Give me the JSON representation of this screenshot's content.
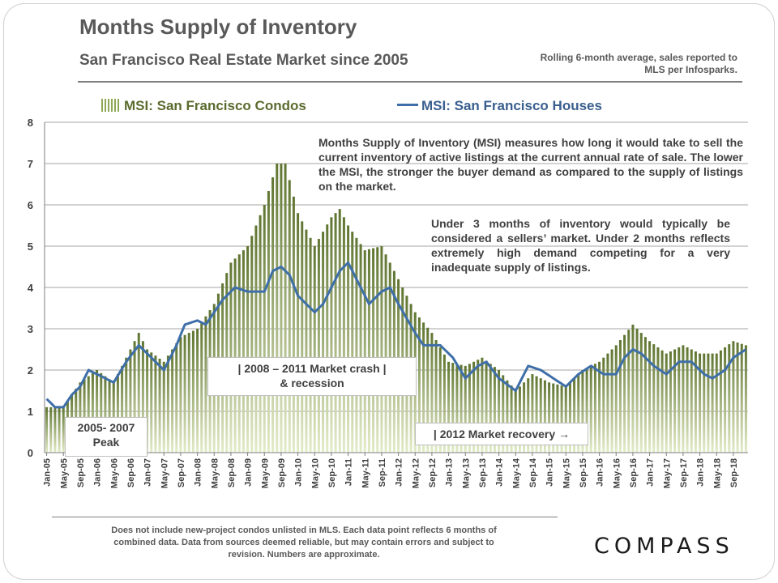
{
  "header": {
    "title": "Months Supply of Inventory",
    "subtitle": "San Francisco Real Estate Market since 2005",
    "note": "Rolling 6-month average, sales reported to MLS per Infosparks."
  },
  "annotations": {
    "msi_definition": "Months Supply of Inventory (MSI) measures how long it would take to sell the current inventory of active listings at the current annual rate of sale. The lower the MSI, the stronger the buyer demand as compared to the supply of listings on the market.",
    "sellers_market": "Under 3 months of inventory would typically be considered a sellers’ market. Under 2 months reflects extremely high demand competing for a very inadequate supply of listings.",
    "crash_line1": "|   2008 – 2011 Market crash   |",
    "crash_line2": "& recession",
    "peak_line1": "2005- 2007",
    "peak_line2": "Peak",
    "recovery": "| 2012 Market recovery →"
  },
  "footnote": "Does not include new-project condos unlisted in MLS. Each data point reflects 6 months of combined data. Data from sources  deemed reliable, but may contain errors and subject to revision. Numbers are approximate.",
  "brand": {
    "logo": "COMPASS"
  },
  "colors": {
    "condo_bars": "#8fa855",
    "condo_legend": "#5b6b2e",
    "house_line": "#3f6fa8",
    "gridline": "#a6a6a6"
  },
  "chart_data": {
    "type": "bar+line",
    "ylim": [
      0,
      8
    ],
    "y_ticks": [
      0,
      1,
      2,
      3,
      4,
      5,
      6,
      7,
      8
    ],
    "grid": "horizontal",
    "legend_position": "top",
    "x_tick_labels": [
      "Jan-05",
      "May-05",
      "Sep-05",
      "Jan-06",
      "May-06",
      "Sep-06",
      "Jan-07",
      "May-07",
      "Sep-07",
      "Jan-08",
      "May-08",
      "Sep-08",
      "Jan-09",
      "May-09",
      "Sep-09",
      "Jan-10",
      "May-10",
      "Sep-10",
      "Jan-11",
      "May-11",
      "Sep-11",
      "Jan-12",
      "May-12",
      "Sep-12",
      "Jan-13",
      "May-13",
      "Sep-13",
      "Jan-14",
      "May-14",
      "Sep-14",
      "Jan-15",
      "May-15",
      "Sep-15",
      "Jan-16",
      "May-16",
      "Sep-16",
      "Jan-17",
      "May-17",
      "Sep-17",
      "Jan-18",
      "May-18",
      "Sep-18"
    ],
    "x_start": "Jan-05",
    "x_end": "Dec-18",
    "series": [
      {
        "name": "MSI: San Francisco Condos",
        "kind": "bar",
        "anchors": [
          [
            "Jan-05",
            1.1
          ],
          [
            "May-05",
            1.1
          ],
          [
            "Sep-05",
            1.7
          ],
          [
            "Jan-06",
            2.0
          ],
          [
            "May-06",
            1.7
          ],
          [
            "Sep-06",
            2.5
          ],
          [
            "Nov-06",
            2.9
          ],
          [
            "Jan-07",
            2.5
          ],
          [
            "May-07",
            2.2
          ],
          [
            "Sep-07",
            2.8
          ],
          [
            "Jan-08",
            3.0
          ],
          [
            "May-08",
            3.6
          ],
          [
            "Sep-08",
            4.6
          ],
          [
            "Jan-09",
            5.0
          ],
          [
            "May-09",
            6.0
          ],
          [
            "Aug-09",
            7.0
          ],
          [
            "Oct-09",
            7.0
          ],
          [
            "Jan-10",
            5.8
          ],
          [
            "May-10",
            5.0
          ],
          [
            "Sep-10",
            5.7
          ],
          [
            "Nov-10",
            5.9
          ],
          [
            "Jan-11",
            5.5
          ],
          [
            "May-11",
            4.9
          ],
          [
            "Sep-11",
            5.0
          ],
          [
            "Jan-12",
            4.2
          ],
          [
            "May-12",
            3.4
          ],
          [
            "Sep-12",
            2.9
          ],
          [
            "Jan-13",
            2.2
          ],
          [
            "May-13",
            2.1
          ],
          [
            "Sep-13",
            2.3
          ],
          [
            "Jan-14",
            2.0
          ],
          [
            "May-14",
            1.5
          ],
          [
            "Sep-14",
            1.9
          ],
          [
            "Jan-15",
            1.7
          ],
          [
            "May-15",
            1.6
          ],
          [
            "Sep-15",
            2.0
          ],
          [
            "Jan-16",
            2.2
          ],
          [
            "May-16",
            2.6
          ],
          [
            "Sep-16",
            3.1
          ],
          [
            "Jan-17",
            2.7
          ],
          [
            "May-17",
            2.4
          ],
          [
            "Sep-17",
            2.6
          ],
          [
            "Jan-18",
            2.4
          ],
          [
            "May-18",
            2.4
          ],
          [
            "Sep-18",
            2.7
          ],
          [
            "Dec-18",
            2.6
          ]
        ]
      },
      {
        "name": "MSI: San Francisco Houses",
        "kind": "line",
        "anchors": [
          [
            "Jan-05",
            1.3
          ],
          [
            "Mar-05",
            1.1
          ],
          [
            "May-05",
            1.1
          ],
          [
            "Jul-05",
            1.4
          ],
          [
            "Sep-05",
            1.6
          ],
          [
            "Nov-05",
            2.0
          ],
          [
            "Jan-06",
            1.9
          ],
          [
            "May-06",
            1.7
          ],
          [
            "Aug-06",
            2.2
          ],
          [
            "Nov-06",
            2.6
          ],
          [
            "Jan-07",
            2.4
          ],
          [
            "May-07",
            2.0
          ],
          [
            "Aug-07",
            2.6
          ],
          [
            "Oct-07",
            3.1
          ],
          [
            "Jan-08",
            3.2
          ],
          [
            "Mar-08",
            3.1
          ],
          [
            "May-08",
            3.4
          ],
          [
            "Jul-08",
            3.7
          ],
          [
            "Oct-08",
            4.0
          ],
          [
            "Jan-09",
            3.9
          ],
          [
            "May-09",
            3.9
          ],
          [
            "Jul-09",
            4.4
          ],
          [
            "Sep-09",
            4.5
          ],
          [
            "Nov-09",
            4.3
          ],
          [
            "Jan-10",
            3.8
          ],
          [
            "May-10",
            3.4
          ],
          [
            "Jul-10",
            3.6
          ],
          [
            "Sep-10",
            4.0
          ],
          [
            "Nov-10",
            4.4
          ],
          [
            "Jan-11",
            4.6
          ],
          [
            "Mar-11",
            4.2
          ],
          [
            "Jun-11",
            3.6
          ],
          [
            "Sep-11",
            3.9
          ],
          [
            "Nov-11",
            4.0
          ],
          [
            "Jan-12",
            3.6
          ],
          [
            "May-12",
            2.9
          ],
          [
            "Jul-12",
            2.6
          ],
          [
            "Nov-12",
            2.6
          ],
          [
            "Feb-13",
            2.3
          ],
          [
            "May-13",
            1.8
          ],
          [
            "Aug-13",
            2.1
          ],
          [
            "Oct-13",
            2.2
          ],
          [
            "Jan-14",
            1.8
          ],
          [
            "May-14",
            1.5
          ],
          [
            "Aug-14",
            2.1
          ],
          [
            "Nov-14",
            2.0
          ],
          [
            "Feb-15",
            1.8
          ],
          [
            "May-15",
            1.6
          ],
          [
            "Aug-15",
            1.9
          ],
          [
            "Nov-15",
            2.1
          ],
          [
            "Feb-16",
            1.9
          ],
          [
            "May-16",
            1.9
          ],
          [
            "Jul-16",
            2.3
          ],
          [
            "Sep-16",
            2.5
          ],
          [
            "Nov-16",
            2.4
          ],
          [
            "Feb-17",
            2.1
          ],
          [
            "May-17",
            1.9
          ],
          [
            "Aug-17",
            2.2
          ],
          [
            "Nov-17",
            2.2
          ],
          [
            "Feb-18",
            1.9
          ],
          [
            "Apr-18",
            1.8
          ],
          [
            "Jul-18",
            2.0
          ],
          [
            "Sep-18",
            2.3
          ],
          [
            "Dec-18",
            2.5
          ]
        ]
      }
    ]
  }
}
